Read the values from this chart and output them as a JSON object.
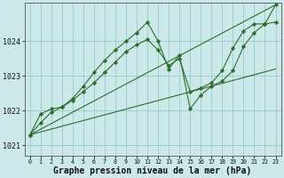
{
  "background_color": "#cce8e8",
  "grid_color": "#99cccc",
  "line_color": "#2d6e2d",
  "marker_color": "#2d6e2d",
  "xlabel": "Graphe pression niveau de la mer (hPa)",
  "xlim": [
    -0.5,
    23.5
  ],
  "ylim": [
    1020.7,
    1025.1
  ],
  "yticks": [
    1021,
    1022,
    1023,
    1024
  ],
  "xticks": [
    0,
    1,
    2,
    3,
    4,
    5,
    6,
    7,
    8,
    9,
    10,
    11,
    12,
    13,
    14,
    15,
    16,
    17,
    18,
    19,
    20,
    21,
    22,
    23
  ],
  "series": [
    {
      "x": [
        0,
        23
      ],
      "y": [
        1021.3,
        1025.05
      ],
      "has_markers": false
    },
    {
      "x": [
        0,
        23
      ],
      "y": [
        1021.3,
        1023.2
      ],
      "has_markers": false
    },
    {
      "x": [
        0,
        1,
        2,
        3,
        4,
        5,
        6,
        7,
        8,
        9,
        10,
        11,
        12,
        13,
        14,
        15,
        16,
        17,
        18,
        19,
        20,
        21,
        22,
        23
      ],
      "y": [
        1021.3,
        1021.65,
        1021.95,
        1022.1,
        1022.3,
        1022.55,
        1022.8,
        1023.1,
        1023.4,
        1023.7,
        1023.9,
        1024.05,
        1023.75,
        1023.3,
        1023.5,
        1022.55,
        1022.65,
        1022.8,
        1023.15,
        1023.8,
        1024.3,
        1024.5,
        1024.5,
        1024.55
      ],
      "has_markers": true
    },
    {
      "x": [
        0,
        1,
        2,
        3,
        4,
        5,
        6,
        7,
        8,
        9,
        10,
        11,
        12,
        13,
        14,
        15,
        16,
        17,
        18,
        19,
        20,
        21,
        22,
        23
      ],
      "y": [
        1021.3,
        1021.9,
        1022.05,
        1022.1,
        1022.35,
        1022.7,
        1023.1,
        1023.45,
        1023.75,
        1024.0,
        1024.25,
        1024.55,
        1024.0,
        1023.2,
        1023.6,
        1022.05,
        1022.45,
        1022.7,
        1022.85,
        1023.15,
        1023.85,
        1024.25,
        1024.5,
        1025.05
      ],
      "has_markers": true
    }
  ]
}
